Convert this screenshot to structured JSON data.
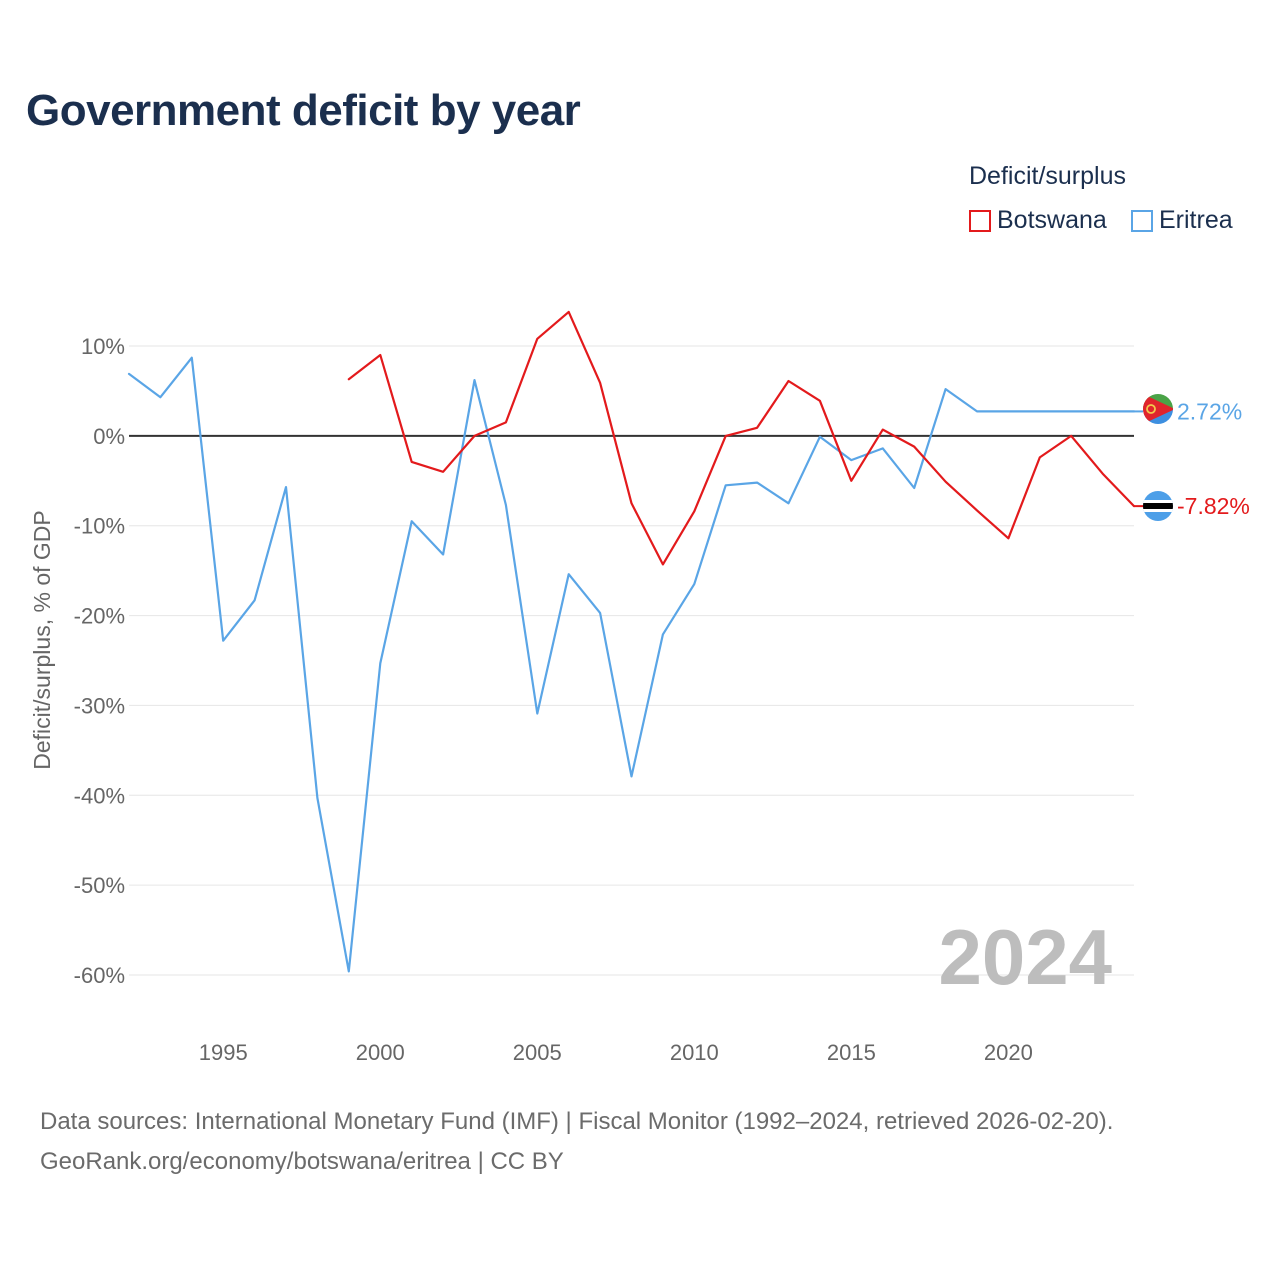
{
  "title": "Government deficit by year",
  "legend": {
    "title": "Deficit/surplus",
    "items": [
      {
        "label": "Botswana",
        "color": "#e31a1c"
      },
      {
        "label": "Eritrea",
        "color": "#5aa5e6"
      }
    ]
  },
  "watermark_year": "2024",
  "footer": {
    "line1": "Data sources: International Monetary Fund (IMF) | Fiscal Monitor (1992–2024, retrieved 2026-02-20).",
    "line2": "GeoRank.org/economy/botswana/eritrea | CC BY"
  },
  "chart_data": {
    "type": "line",
    "title": "Government deficit by year",
    "xlabel": "",
    "ylabel": "Deficit/surplus, % of GDP",
    "xlim": [
      1992,
      2024
    ],
    "ylim": [
      -60,
      10
    ],
    "x_ticks": [
      1995,
      2000,
      2005,
      2010,
      2015,
      2020
    ],
    "y_ticks": [
      10,
      0,
      -10,
      -20,
      -30,
      -40,
      -50,
      -60
    ],
    "y_tick_labels": [
      "10%",
      "0%",
      "-10%",
      "-20%",
      "-30%",
      "-40%",
      "-50%",
      "-60%"
    ],
    "grid": true,
    "zero_line": true,
    "series": [
      {
        "name": "Botswana",
        "color": "#e31a1c",
        "end_label": "-7.82%",
        "flag": "botswana",
        "x": [
          1999,
          2000,
          2001,
          2002,
          2003,
          2004,
          2005,
          2006,
          2007,
          2008,
          2009,
          2010,
          2011,
          2012,
          2013,
          2014,
          2015,
          2016,
          2017,
          2018,
          2019,
          2020,
          2021,
          2022,
          2023,
          2024
        ],
        "y": [
          6.3,
          9.0,
          -2.9,
          -4.0,
          0.0,
          1.5,
          10.8,
          13.8,
          5.9,
          -7.5,
          -14.3,
          -8.4,
          0.0,
          0.9,
          6.1,
          3.9,
          -5.0,
          0.7,
          -1.2,
          -5.1,
          -8.3,
          -11.4,
          -2.4,
          0.0,
          -4.2,
          -7.82
        ]
      },
      {
        "name": "Eritrea",
        "color": "#5aa5e6",
        "end_label": "2.72%",
        "flag": "eritrea",
        "x": [
          1992,
          1993,
          1994,
          1995,
          1996,
          1997,
          1998,
          1999,
          2000,
          2001,
          2002,
          2003,
          2004,
          2005,
          2006,
          2007,
          2008,
          2009,
          2010,
          2011,
          2012,
          2013,
          2014,
          2015,
          2016,
          2017,
          2018,
          2019,
          2020,
          2021,
          2022,
          2023,
          2024
        ],
        "y": [
          6.9,
          4.3,
          8.7,
          -22.8,
          -18.3,
          -5.7,
          -40.3,
          -59.6,
          -25.3,
          -9.5,
          -13.2,
          6.2,
          -7.7,
          -30.9,
          -15.4,
          -19.7,
          -37.9,
          -22.1,
          -16.5,
          -5.5,
          -5.2,
          -7.5,
          -0.1,
          -2.7,
          -1.4,
          -5.8,
          5.2,
          2.72,
          2.72,
          2.72,
          2.72,
          2.72,
          2.72
        ]
      }
    ]
  }
}
